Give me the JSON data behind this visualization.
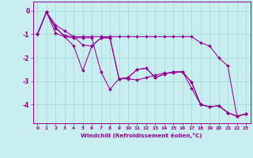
{
  "xlabel": "Windchill (Refroidissement éolien,°C)",
  "background_color": "#c8eef0",
  "line_color": "#990099",
  "xlim": [
    -0.5,
    23.5
  ],
  "ylim": [
    -4.8,
    0.4
  ],
  "xticks": [
    0,
    1,
    2,
    3,
    4,
    5,
    6,
    7,
    8,
    9,
    10,
    11,
    12,
    13,
    14,
    15,
    16,
    17,
    18,
    19,
    20,
    21,
    22,
    23
  ],
  "yticks": [
    0,
    -1,
    -2,
    -3,
    -4
  ],
  "grid_color": "#a0d8d8",
  "curves": [
    {
      "x": [
        0,
        1,
        2,
        3,
        4,
        5,
        6,
        7,
        8,
        9,
        10,
        11,
        12,
        13,
        14,
        15,
        16,
        17,
        18,
        19,
        20,
        21,
        22,
        23
      ],
      "y": [
        -1.0,
        -0.05,
        -0.7,
        -1.1,
        -1.15,
        -1.15,
        -1.15,
        -2.6,
        -3.35,
        -2.9,
        -2.9,
        -2.95,
        -2.85,
        -2.75,
        -2.65,
        -2.65,
        -2.6,
        -3.3,
        -4.0,
        -4.1,
        -4.05,
        -4.35,
        -4.5,
        -4.4
      ]
    },
    {
      "x": [
        0,
        1,
        2,
        3,
        4,
        5,
        6,
        7,
        8,
        9,
        10,
        11,
        12,
        13,
        14,
        15,
        16,
        17,
        18,
        19,
        20,
        21,
        22,
        23
      ],
      "y": [
        -1.0,
        -0.05,
        -0.6,
        -0.85,
        -1.1,
        -1.45,
        -1.5,
        -1.15,
        -1.15,
        -2.9,
        -2.85,
        -2.5,
        -2.45,
        -2.85,
        -2.7,
        -2.6,
        -2.6,
        -3.05,
        -4.0,
        -4.1,
        -4.05,
        -4.35,
        -4.5,
        -4.4
      ]
    },
    {
      "x": [
        0,
        1,
        2,
        3,
        4,
        5,
        6,
        7,
        8,
        9,
        10,
        11,
        12,
        13,
        14,
        15,
        16,
        17,
        18,
        19,
        20,
        21,
        22,
        23
      ],
      "y": [
        -1.0,
        -0.05,
        -0.95,
        -1.1,
        -1.5,
        -2.55,
        -1.5,
        -1.15,
        -1.15,
        -2.9,
        -2.85,
        -2.5,
        -2.45,
        -2.85,
        -2.7,
        -2.6,
        -2.6,
        -3.05,
        -4.0,
        -4.1,
        -4.05,
        -4.35,
        -4.5,
        -4.4
      ]
    },
    {
      "x": [
        0,
        1,
        2,
        3,
        4,
        5,
        6,
        7,
        8,
        9,
        10,
        11,
        12,
        13,
        14,
        15,
        16,
        17,
        18,
        19,
        20,
        21,
        22,
        23
      ],
      "y": [
        -1.0,
        -0.05,
        -0.75,
        -1.05,
        -1.1,
        -1.1,
        -1.1,
        -1.1,
        -1.1,
        -1.1,
        -1.1,
        -1.1,
        -1.1,
        -1.1,
        -1.1,
        -1.1,
        -1.1,
        -1.1,
        -1.35,
        -1.5,
        -2.0,
        -2.35,
        -4.5,
        -4.4
      ]
    }
  ]
}
